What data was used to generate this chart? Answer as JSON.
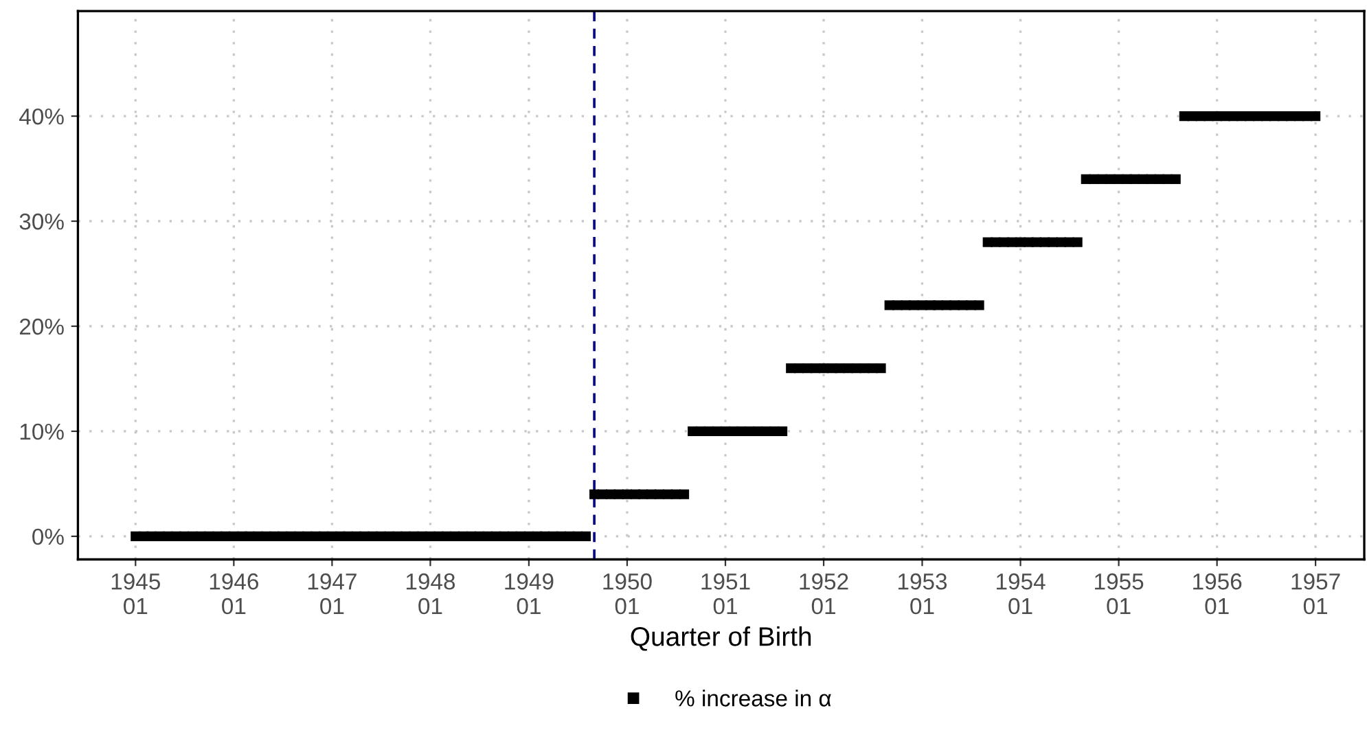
{
  "chart_data": {
    "type": "scatter",
    "xlabel": "Quarter of Birth",
    "x": [
      "1945-01",
      "1945-02",
      "1945-03",
      "1945-04",
      "1945-05",
      "1945-06",
      "1945-07",
      "1945-08",
      "1945-09",
      "1945-10",
      "1945-11",
      "1945-12",
      "1946-01",
      "1946-02",
      "1946-03",
      "1946-04",
      "1946-05",
      "1946-06",
      "1946-07",
      "1946-08",
      "1946-09",
      "1946-10",
      "1946-11",
      "1946-12",
      "1947-01",
      "1947-02",
      "1947-03",
      "1947-04",
      "1947-05",
      "1947-06",
      "1947-07",
      "1947-08",
      "1947-09",
      "1947-10",
      "1947-11",
      "1947-12",
      "1948-01",
      "1948-02",
      "1948-03",
      "1948-04",
      "1948-05",
      "1948-06",
      "1948-07",
      "1948-08",
      "1948-09",
      "1948-10",
      "1948-11",
      "1948-12",
      "1949-01",
      "1949-02",
      "1949-03",
      "1949-04",
      "1949-05",
      "1949-06",
      "1949-07",
      "1949-08",
      "1949-09",
      "1949-10",
      "1949-11",
      "1949-12",
      "1950-01",
      "1950-02",
      "1950-03",
      "1950-04",
      "1950-05",
      "1950-06",
      "1950-07",
      "1950-08",
      "1950-09",
      "1950-10",
      "1950-11",
      "1950-12",
      "1951-01",
      "1951-02",
      "1951-03",
      "1951-04",
      "1951-05",
      "1951-06",
      "1951-07",
      "1951-08",
      "1951-09",
      "1951-10",
      "1951-11",
      "1951-12",
      "1952-01",
      "1952-02",
      "1952-03",
      "1952-04",
      "1952-05",
      "1952-06",
      "1952-07",
      "1952-08",
      "1952-09",
      "1952-10",
      "1952-11",
      "1952-12",
      "1953-01",
      "1953-02",
      "1953-03",
      "1953-04",
      "1953-05",
      "1953-06",
      "1953-07",
      "1953-08",
      "1953-09",
      "1953-10",
      "1953-11",
      "1953-12",
      "1954-01",
      "1954-02",
      "1954-03",
      "1954-04",
      "1954-05",
      "1954-06",
      "1954-07",
      "1954-08",
      "1954-09",
      "1954-10",
      "1954-11",
      "1954-12",
      "1955-01",
      "1955-02",
      "1955-03",
      "1955-04",
      "1955-05",
      "1955-06",
      "1955-07",
      "1955-08",
      "1955-09",
      "1955-10",
      "1955-11",
      "1955-12",
      "1956-01",
      "1956-02",
      "1956-03",
      "1956-04",
      "1956-05",
      "1956-06",
      "1956-07",
      "1956-08",
      "1956-09",
      "1956-10",
      "1956-11",
      "1956-12",
      "1957-01"
    ],
    "series": [
      {
        "name": "% increase in α",
        "color": "#000000",
        "values": [
          0,
          0,
          0,
          0,
          0,
          0,
          0,
          0,
          0,
          0,
          0,
          0,
          0,
          0,
          0,
          0,
          0,
          0,
          0,
          0,
          0,
          0,
          0,
          0,
          0,
          0,
          0,
          0,
          0,
          0,
          0,
          0,
          0,
          0,
          0,
          0,
          0,
          0,
          0,
          0,
          0,
          0,
          0,
          0,
          0,
          0,
          0,
          0,
          0,
          0,
          0,
          0,
          0,
          0,
          0,
          0,
          4,
          4,
          4,
          4,
          4,
          4,
          4,
          4,
          4,
          4,
          4,
          4,
          10,
          10,
          10,
          10,
          10,
          10,
          10,
          10,
          10,
          10,
          10,
          10,
          16,
          16,
          16,
          16,
          16,
          16,
          16,
          16,
          16,
          16,
          16,
          16,
          22,
          22,
          22,
          22,
          22,
          22,
          22,
          22,
          22,
          22,
          22,
          22,
          28,
          28,
          28,
          28,
          28,
          28,
          28,
          28,
          28,
          28,
          28,
          28,
          34,
          34,
          34,
          34,
          34,
          34,
          34,
          34,
          34,
          34,
          34,
          34,
          40,
          40,
          40,
          40,
          40,
          40,
          40,
          40,
          40,
          40,
          40,
          40,
          40,
          40,
          40,
          40,
          40
        ]
      }
    ],
    "marker": "square",
    "xlim": [
      "1944-06",
      "1957-07"
    ],
    "xticks": [
      {
        "value": "1945-01",
        "label": "1945\n01"
      },
      {
        "value": "1946-01",
        "label": "1946\n01"
      },
      {
        "value": "1947-01",
        "label": "1947\n01"
      },
      {
        "value": "1948-01",
        "label": "1948\n01"
      },
      {
        "value": "1949-01",
        "label": "1949\n01"
      },
      {
        "value": "1950-01",
        "label": "1950\n01"
      },
      {
        "value": "1951-01",
        "label": "1951\n01"
      },
      {
        "value": "1952-01",
        "label": "1952\n01"
      },
      {
        "value": "1953-01",
        "label": "1953\n01"
      },
      {
        "value": "1954-01",
        "label": "1954\n01"
      },
      {
        "value": "1955-01",
        "label": "1955\n01"
      },
      {
        "value": "1956-01",
        "label": "1956\n01"
      },
      {
        "value": "1957-01",
        "label": "1957\n01"
      }
    ],
    "ylim": [
      -2.2,
      50
    ],
    "yticks": [
      {
        "value": 0,
        "label": "0%"
      },
      {
        "value": 10,
        "label": "10%"
      },
      {
        "value": 20,
        "label": "20%"
      },
      {
        "value": 30,
        "label": "30%"
      },
      {
        "value": 40,
        "label": "40%"
      }
    ],
    "ref_lines": [
      {
        "axis": "x",
        "value": "1949-09",
        "color": "#00008b",
        "line_style": "dashed"
      }
    ],
    "grid": true,
    "legend": "bottom"
  }
}
